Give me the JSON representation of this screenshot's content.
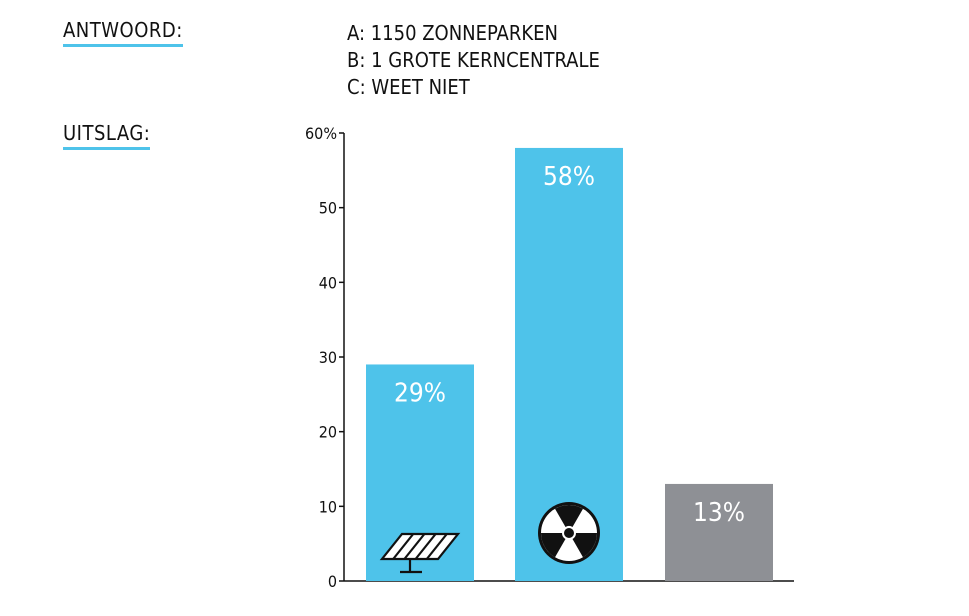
{
  "header": {
    "answer_title": "ANTWOORD:",
    "result_title": "UITSLAG:"
  },
  "answers": [
    "A: 1150 ZONNEPARKEN",
    "B: 1 GROTE KERNCENTRALE",
    "C: WEET NIET"
  ],
  "colors": {
    "accent": "#4ec3ea",
    "bar_a": "#4ec3ea",
    "bar_b": "#4ec3ea",
    "bar_c": "#8e9095"
  },
  "chart_data": {
    "type": "bar",
    "categories": [
      "A",
      "B",
      "C"
    ],
    "values": [
      29,
      58,
      13
    ],
    "value_labels": [
      "29%",
      "58%",
      "13%"
    ],
    "icons": [
      "solar-panel-icon",
      "radiation-icon",
      ""
    ],
    "ylim": [
      0,
      60
    ],
    "yticks": [
      0,
      10,
      20,
      30,
      40,
      50,
      60
    ],
    "ytick_labels": [
      "0",
      "10",
      "20",
      "30",
      "40",
      "50",
      "60%"
    ],
    "grid": false
  }
}
